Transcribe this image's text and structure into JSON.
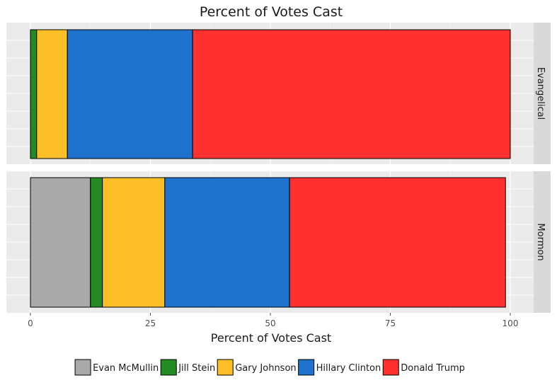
{
  "chart_data": {
    "type": "bar",
    "orientation": "horizontal",
    "stacked": true,
    "title": "Percent of Votes Cast",
    "xlabel": "Percent of Votes Cast",
    "ylabel": "",
    "xlim": [
      0,
      100
    ],
    "xticks": [
      "0",
      "25",
      "50",
      "75",
      "100"
    ],
    "grid": true,
    "legend_position": "bottom",
    "facets": [
      "Evangelical",
      "Mormon"
    ],
    "series": [
      {
        "name": "Evan McMullin",
        "color": "#a9a9a9",
        "values": [
          0.0,
          12.5
        ]
      },
      {
        "name": "Jill Stein",
        "color": "#238b22",
        "values": [
          1.3,
          2.5
        ]
      },
      {
        "name": "Gary Johnson",
        "color": "#fdbf27",
        "values": [
          6.4,
          13.0
        ]
      },
      {
        "name": "Hillary Clinton",
        "color": "#1e72cc",
        "values": [
          26.1,
          26.0
        ]
      },
      {
        "name": "Donald Trump",
        "color": "#ff3030",
        "values": [
          66.2,
          45.0
        ]
      }
    ]
  }
}
